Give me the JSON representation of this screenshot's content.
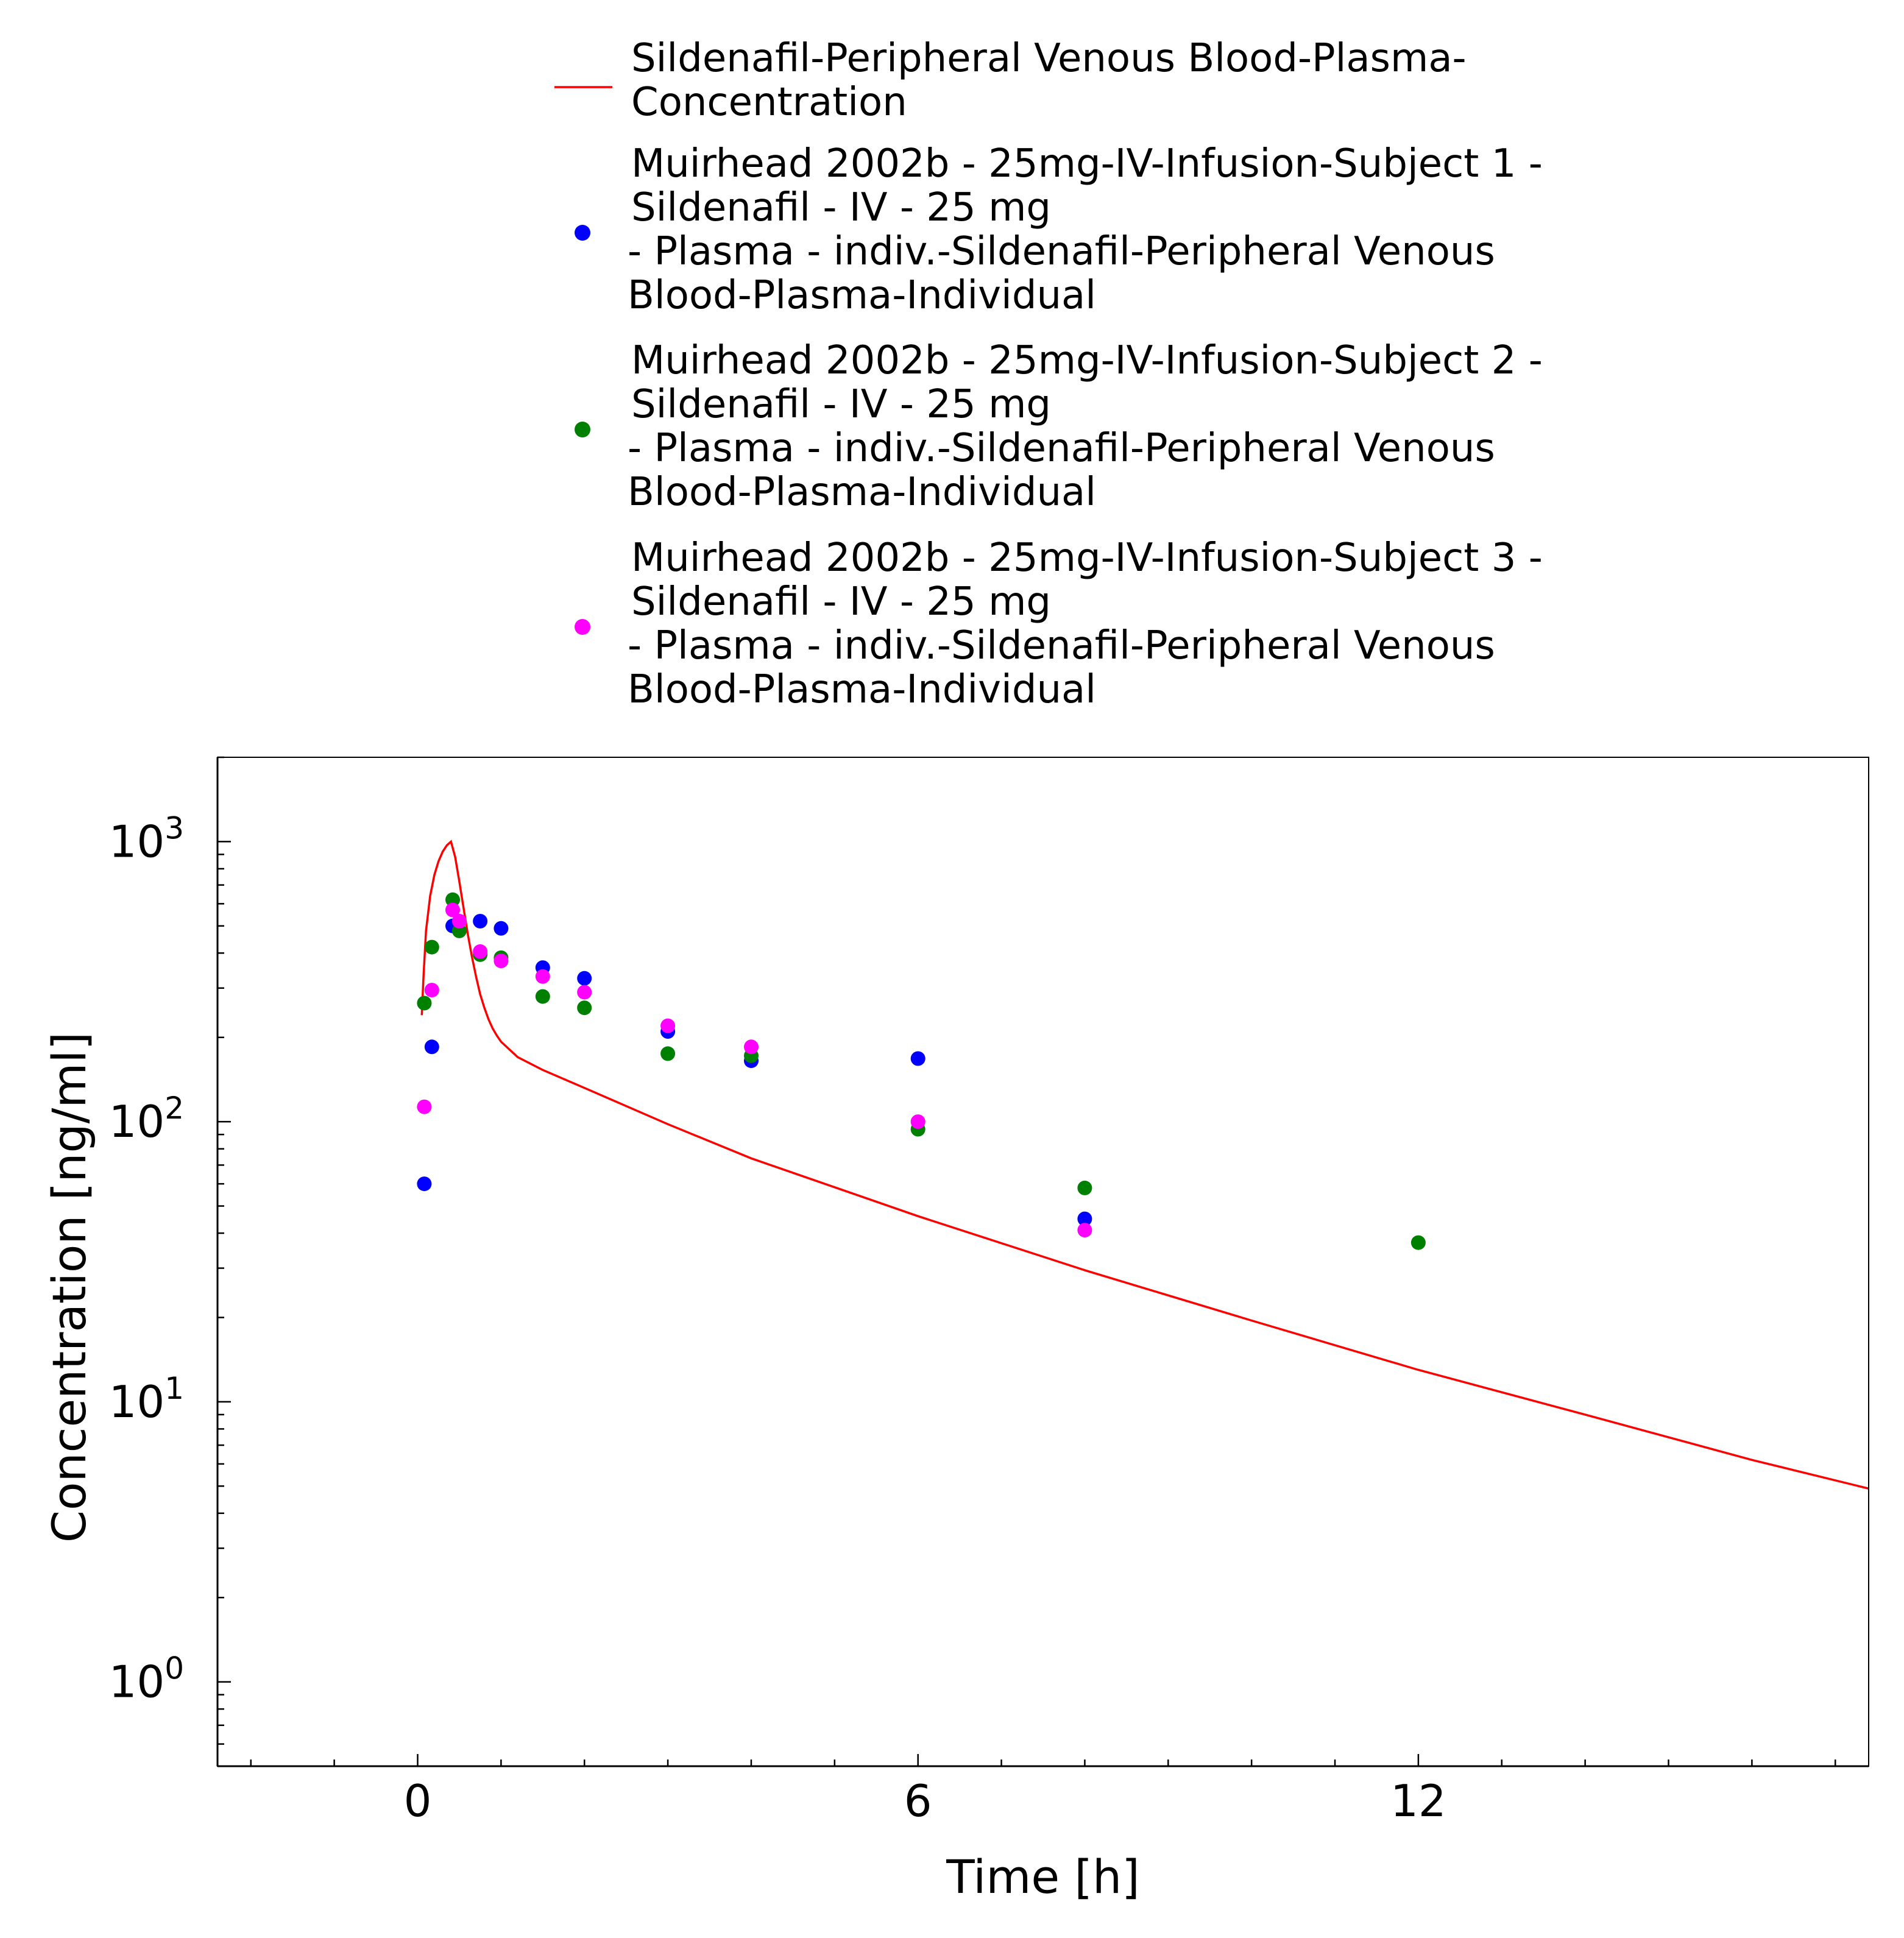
{
  "chart_data": {
    "type": "scatter",
    "title": "",
    "xlabel": "Time [h]",
    "ylabel": "Concentration [ng/ml]",
    "x_scale": "linear",
    "y_scale": "log",
    "xlim": [
      -2.4,
      17.4
    ],
    "ylim": [
      0.5,
      2000
    ],
    "x_ticks": [
      0,
      6,
      12
    ],
    "x_tick_labels": [
      "0",
      "6",
      "12"
    ],
    "y_ticks": [
      1,
      10,
      100,
      1000
    ],
    "y_tick_labels": [
      {
        "base": "10",
        "exp": "0"
      },
      {
        "base": "10",
        "exp": "1"
      },
      {
        "base": "10",
        "exp": "2"
      },
      {
        "base": "10",
        "exp": "3"
      }
    ],
    "grid": false,
    "legend_position": "top",
    "series": [
      {
        "name_lines": [
          "Sildenafil-Peripheral Venous Blood-Plasma-",
          "Concentration"
        ],
        "kind": "line",
        "color": "#ff0000",
        "points": [
          [
            0.05,
            240
          ],
          [
            0.07,
            330
          ],
          [
            0.1,
            480
          ],
          [
            0.15,
            640
          ],
          [
            0.2,
            760
          ],
          [
            0.25,
            850
          ],
          [
            0.3,
            920
          ],
          [
            0.35,
            970
          ],
          [
            0.4,
            1000
          ],
          [
            0.45,
            880
          ],
          [
            0.5,
            720
          ],
          [
            0.55,
            580
          ],
          [
            0.6,
            470
          ],
          [
            0.65,
            390
          ],
          [
            0.7,
            330
          ],
          [
            0.75,
            285
          ],
          [
            0.8,
            255
          ],
          [
            0.85,
            232
          ],
          [
            0.9,
            215
          ],
          [
            0.95,
            203
          ],
          [
            1.0,
            193
          ],
          [
            1.2,
            170
          ],
          [
            1.5,
            153
          ],
          [
            2.0,
            132
          ],
          [
            3.0,
            98
          ],
          [
            4.0,
            74
          ],
          [
            6.0,
            46
          ],
          [
            8.0,
            29.5
          ],
          [
            10.0,
            19.5
          ],
          [
            12.0,
            13
          ],
          [
            14.0,
            9
          ],
          [
            16.0,
            6.2
          ],
          [
            17.4,
            4.9
          ]
        ]
      },
      {
        "name_lines": [
          "Muirhead 2002b - 25mg-IV-Infusion-Subject 1 -",
          "Sildenafil - IV - 25 mg",
          "- Plasma - indiv.-Sildenafil-Peripheral Venous",
          "Blood-Plasma-Individual"
        ],
        "kind": "scatter",
        "color": "#0000ff",
        "points": [
          [
            0.08,
            60
          ],
          [
            0.17,
            185
          ],
          [
            0.42,
            500
          ],
          [
            0.75,
            520
          ],
          [
            1.0,
            490
          ],
          [
            1.5,
            355
          ],
          [
            2.0,
            325
          ],
          [
            3.0,
            210
          ],
          [
            4.0,
            165
          ],
          [
            6.0,
            168
          ],
          [
            8.0,
            45
          ]
        ]
      },
      {
        "name_lines": [
          "Muirhead 2002b - 25mg-IV-Infusion-Subject 2 -",
          "Sildenafil - IV - 25 mg",
          "- Plasma - indiv.-Sildenafil-Peripheral Venous",
          "Blood-Plasma-Individual"
        ],
        "kind": "scatter",
        "color": "#008000",
        "points": [
          [
            0.08,
            265
          ],
          [
            0.17,
            420
          ],
          [
            0.42,
            620
          ],
          [
            0.5,
            480
          ],
          [
            0.75,
            395
          ],
          [
            1.0,
            385
          ],
          [
            1.5,
            280
          ],
          [
            2.0,
            255
          ],
          [
            3.0,
            175
          ],
          [
            4.0,
            172
          ],
          [
            6.0,
            94
          ],
          [
            8.0,
            58
          ],
          [
            12.0,
            37
          ]
        ]
      },
      {
        "name_lines": [
          "Muirhead 2002b - 25mg-IV-Infusion-Subject 3 -",
          "Sildenafil - IV - 25 mg",
          "- Plasma - indiv.-Sildenafil-Peripheral Venous",
          "Blood-Plasma-Individual"
        ],
        "kind": "scatter",
        "color": "#ff00ff",
        "points": [
          [
            0.08,
            113
          ],
          [
            0.17,
            295
          ],
          [
            0.42,
            570
          ],
          [
            0.5,
            520
          ],
          [
            0.75,
            405
          ],
          [
            1.0,
            375
          ],
          [
            1.5,
            330
          ],
          [
            2.0,
            290
          ],
          [
            3.0,
            220
          ],
          [
            4.0,
            185
          ],
          [
            6.0,
            100
          ],
          [
            8.0,
            41
          ]
        ]
      }
    ]
  }
}
